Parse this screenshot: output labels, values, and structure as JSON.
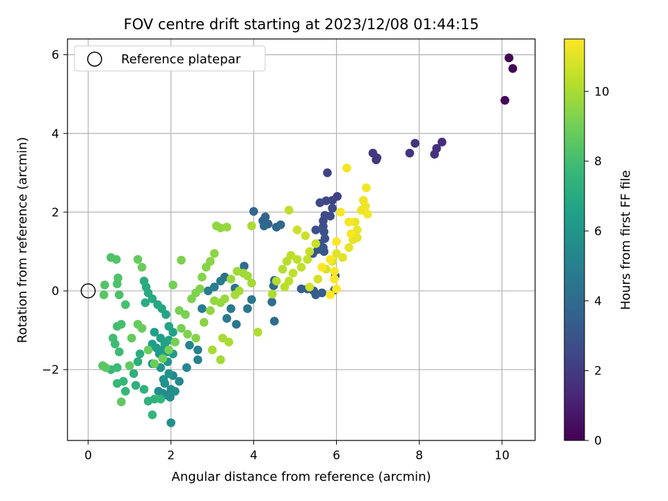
{
  "chart_data": {
    "type": "scatter",
    "title": "FOV centre drift starting at 2023/12/08 01:44:15",
    "xlabel": "Angular distance from reference (arcmin)",
    "ylabel": "Rotation from reference (arcmin)",
    "xlim": [
      -0.5,
      10.8
    ],
    "ylim": [
      -3.8,
      6.4
    ],
    "xticks": [
      0,
      2,
      4,
      6,
      8,
      10
    ],
    "yticks": [
      -2,
      0,
      2,
      4,
      6
    ],
    "xtick_labels": [
      "0",
      "2",
      "4",
      "6",
      "8",
      "10"
    ],
    "ytick_labels": [
      "−2",
      "0",
      "2",
      "4",
      "6"
    ],
    "grid": true,
    "legend": {
      "placement": "upper-left",
      "entries": [
        "Reference platepar"
      ]
    },
    "reference_point": {
      "name": "Reference platepar",
      "x": 0,
      "y": 0
    },
    "colorbar": {
      "label": "Hours from first FF file",
      "colormap": "viridis",
      "range": [
        0,
        11.5
      ],
      "ticks": [
        0,
        2,
        4,
        6,
        8,
        10
      ],
      "tick_labels": [
        "0",
        "2",
        "4",
        "6",
        "8",
        "10"
      ]
    },
    "series": [
      {
        "points": [
          [
            10.17,
            5.92,
            0.05
          ],
          [
            10.26,
            5.65,
            0.1
          ],
          [
            10.07,
            4.84,
            0.15
          ],
          [
            8.55,
            3.78,
            1.5
          ],
          [
            8.42,
            3.62,
            1.55
          ],
          [
            8.37,
            3.47,
            1.6
          ],
          [
            7.9,
            3.75,
            1.7
          ],
          [
            7.77,
            3.5,
            1.75
          ],
          [
            6.98,
            3.38,
            1.8
          ],
          [
            6.96,
            3.33,
            1.85
          ],
          [
            6.88,
            3.5,
            1.9
          ],
          [
            6.02,
            2.4,
            2.2
          ],
          [
            5.78,
            3.0,
            2.3
          ],
          [
            5.9,
            2.3,
            2.4
          ],
          [
            5.75,
            2.29,
            2.45
          ],
          [
            5.6,
            2.24,
            2.5
          ],
          [
            5.9,
            2.1,
            2.55
          ],
          [
            5.85,
            1.9,
            2.6
          ],
          [
            5.72,
            1.92,
            2.65
          ],
          [
            5.68,
            1.78,
            2.7
          ],
          [
            5.68,
            1.64,
            2.75
          ],
          [
            5.5,
            1.55,
            2.8
          ],
          [
            5.7,
            1.5,
            2.85
          ],
          [
            5.72,
            1.33,
            2.9
          ],
          [
            5.6,
            1.2,
            2.95
          ],
          [
            5.68,
            1.1,
            3.0
          ],
          [
            5.55,
            1.05,
            3.05
          ],
          [
            5.43,
            0.95,
            3.1
          ],
          [
            5.7,
            1.0,
            3.15
          ],
          [
            5.3,
            0.05,
            3.2
          ],
          [
            5.45,
            0.0,
            3.25
          ],
          [
            5.65,
            -0.05,
            3.3
          ],
          [
            5.5,
            -0.1,
            3.35
          ],
          [
            5.97,
            0.38,
            3.4
          ],
          [
            5.15,
            0.05,
            3.45
          ],
          [
            5.95,
            0.02,
            3.5
          ],
          [
            4.35,
            1.7,
            3.6
          ],
          [
            4.28,
            1.88,
            3.65
          ],
          [
            4.22,
            1.78,
            3.7
          ],
          [
            4.0,
            2.02,
            3.75
          ],
          [
            4.55,
            1.62,
            3.8
          ],
          [
            4.65,
            1.68,
            3.85
          ],
          [
            4.25,
            1.65,
            3.9
          ],
          [
            4.48,
            0.13,
            3.95
          ],
          [
            4.5,
            0.27,
            4.0
          ],
          [
            4.44,
            -0.28,
            4.05
          ],
          [
            4.5,
            -0.77,
            4.1
          ],
          [
            3.77,
            0.63,
            4.2
          ],
          [
            3.3,
            0.35,
            4.3
          ],
          [
            3.55,
            0.07,
            4.4
          ],
          [
            3.95,
            -0.22,
            4.5
          ],
          [
            3.85,
            -0.45,
            4.55
          ],
          [
            3.58,
            -0.85,
            4.6
          ],
          [
            3.45,
            -0.45,
            4.65
          ],
          [
            3.35,
            -0.7,
            4.7
          ],
          [
            3.2,
            0.25,
            4.75
          ],
          [
            3.05,
            0.1,
            4.8
          ],
          [
            2.9,
            0.0,
            4.85
          ],
          [
            2.75,
            -0.45,
            4.9
          ],
          [
            2.65,
            -1.5,
            5.0
          ],
          [
            2.65,
            -1.75,
            5.1
          ],
          [
            2.45,
            -1.38,
            5.2
          ],
          [
            2.38,
            -1.95,
            5.3
          ],
          [
            2.2,
            -2.3,
            5.4
          ],
          [
            2.05,
            -2.15,
            5.45
          ],
          [
            2.0,
            -2.5,
            5.5
          ],
          [
            1.9,
            -2.65,
            5.55
          ],
          [
            1.8,
            -2.6,
            5.6
          ],
          [
            1.7,
            -2.55,
            5.65
          ],
          [
            1.98,
            -2.7,
            5.7
          ],
          [
            2.1,
            -2.55,
            5.75
          ],
          [
            2.0,
            -3.35,
            5.8
          ],
          [
            1.85,
            -2.35,
            5.85
          ],
          [
            1.82,
            -2.25,
            5.9
          ],
          [
            1.75,
            -1.95,
            5.95
          ],
          [
            1.95,
            -2.1,
            6.0
          ],
          [
            1.55,
            -1.85,
            6.05
          ],
          [
            1.92,
            -1.8,
            6.1
          ],
          [
            2.05,
            -1.6,
            6.15
          ],
          [
            1.9,
            -1.55,
            6.2
          ],
          [
            1.8,
            -1.5,
            6.25
          ],
          [
            1.72,
            -1.6,
            6.3
          ],
          [
            1.65,
            -1.45,
            6.35
          ],
          [
            1.55,
            -1.35,
            6.4
          ],
          [
            1.6,
            -1.05,
            6.45
          ],
          [
            1.75,
            -1.2,
            6.5
          ],
          [
            1.85,
            -1.35,
            6.55
          ],
          [
            1.95,
            -1.25,
            6.6
          ],
          [
            2.05,
            -1.05,
            6.65
          ],
          [
            1.95,
            -0.9,
            6.7
          ],
          [
            1.88,
            -0.6,
            6.75
          ],
          [
            1.78,
            -0.45,
            6.8
          ],
          [
            1.68,
            -0.35,
            6.85
          ],
          [
            1.55,
            -0.2,
            6.9
          ],
          [
            1.45,
            -0.05,
            6.95
          ],
          [
            1.4,
            0.1,
            7.0
          ],
          [
            1.35,
            0.25,
            7.05
          ],
          [
            1.38,
            -0.3,
            7.1
          ],
          [
            1.25,
            -1.6,
            7.15
          ],
          [
            1.2,
            -1.8,
            7.2
          ],
          [
            1.1,
            -2.1,
            7.25
          ],
          [
            1.15,
            -2.4,
            7.3
          ],
          [
            1.35,
            -2.5,
            7.35
          ],
          [
            1.45,
            -2.8,
            7.4
          ],
          [
            1.6,
            -2.75,
            7.45
          ],
          [
            1.75,
            -2.75,
            7.5
          ],
          [
            1.55,
            -3.15,
            7.55
          ],
          [
            0.9,
            -2.55,
            7.6
          ],
          [
            0.85,
            -2.3,
            7.65
          ],
          [
            0.7,
            -2.35,
            7.7
          ],
          [
            0.55,
            -2.0,
            7.75
          ],
          [
            0.7,
            -1.95,
            7.8
          ],
          [
            0.75,
            -1.55,
            7.85
          ],
          [
            0.65,
            -1.35,
            7.9
          ],
          [
            0.6,
            -1.2,
            7.95
          ],
          [
            0.7,
            -0.9,
            8.0
          ],
          [
            0.8,
            -0.85,
            8.05
          ],
          [
            0.9,
            -0.35,
            8.1
          ],
          [
            0.75,
            -0.1,
            8.15
          ],
          [
            0.7,
            0.18,
            8.2
          ],
          [
            0.72,
            0.33,
            8.25
          ],
          [
            0.55,
            0.85,
            8.3
          ],
          [
            0.68,
            0.8,
            8.35
          ],
          [
            0.4,
            0.15,
            8.4
          ],
          [
            0.38,
            -0.1,
            8.45
          ],
          [
            0.35,
            -1.9,
            8.5
          ],
          [
            0.42,
            -1.95,
            8.55
          ],
          [
            0.8,
            -2.82,
            8.6
          ],
          [
            1.0,
            -1.9,
            8.65
          ],
          [
            1.05,
            -1.2,
            8.7
          ],
          [
            1.2,
            -0.85,
            8.75
          ],
          [
            1.3,
            -0.95,
            8.8
          ],
          [
            1.45,
            -1.5,
            8.85
          ],
          [
            1.6,
            -1.85,
            8.9
          ],
          [
            1.8,
            -1.72,
            8.95
          ],
          [
            1.95,
            -1.5,
            9.0
          ],
          [
            2.1,
            -1.3,
            9.05
          ],
          [
            2.25,
            -0.95,
            9.1
          ],
          [
            2.35,
            -0.6,
            9.15
          ],
          [
            2.5,
            -0.2,
            9.2
          ],
          [
            2.6,
            -0.05,
            9.25
          ],
          [
            2.7,
            0.05,
            9.3
          ],
          [
            2.75,
            0.35,
            9.35
          ],
          [
            2.85,
            0.6,
            9.4
          ],
          [
            2.95,
            0.75,
            9.45
          ],
          [
            3.05,
            0.95,
            9.5
          ],
          [
            3.1,
            1.65,
            9.55
          ],
          [
            3.2,
            1.6,
            9.6
          ],
          [
            3.35,
            1.62,
            9.65
          ],
          [
            1.2,
            0.8,
            8.7
          ],
          [
            1.3,
            0.6,
            8.8
          ],
          [
            2.25,
            0.78,
            9.2
          ],
          [
            2.05,
            0.15,
            9.05
          ],
          [
            2.2,
            -0.5,
            9.15
          ],
          [
            2.4,
            -1.1,
            9.25
          ],
          [
            2.6,
            -1.2,
            9.35
          ],
          [
            2.8,
            -0.8,
            9.45
          ],
          [
            2.95,
            -0.5,
            9.55
          ],
          [
            3.05,
            -0.25,
            9.6
          ],
          [
            3.2,
            -0.3,
            9.65
          ],
          [
            3.3,
            -0.2,
            9.7
          ],
          [
            3.45,
            0.3,
            9.75
          ],
          [
            3.6,
            0.5,
            9.8
          ],
          [
            3.75,
            0.45,
            9.82
          ],
          [
            3.85,
            0.38,
            9.85
          ],
          [
            3.95,
            0.2,
            9.9
          ],
          [
            3.65,
            0.0,
            9.92
          ],
          [
            3.55,
            -0.1,
            9.95
          ],
          [
            3.2,
            -1.75,
            9.9
          ],
          [
            3.0,
            -1.5,
            9.95
          ],
          [
            3.25,
            -1.2,
            10.0
          ],
          [
            3.4,
            -1.3,
            10.05
          ],
          [
            4.1,
            -1.05,
            10.1
          ],
          [
            3.95,
            1.65,
            10.0
          ],
          [
            4.45,
            -0.08,
            10.1
          ],
          [
            4.55,
            0.25,
            10.15
          ],
          [
            4.7,
            0.55,
            10.2
          ],
          [
            4.8,
            0.75,
            10.25
          ],
          [
            4.9,
            0.9,
            10.3
          ],
          [
            5.05,
            0.8,
            10.35
          ],
          [
            5.15,
            0.6,
            10.4
          ],
          [
            5.3,
            0.8,
            10.45
          ],
          [
            5.35,
            1.0,
            10.5
          ],
          [
            5.5,
            1.2,
            10.55
          ],
          [
            5.25,
            1.4,
            10.6
          ],
          [
            5.05,
            1.55,
            10.65
          ],
          [
            4.85,
            2.05,
            10.4
          ],
          [
            4.75,
            0.1,
            10.3
          ],
          [
            4.85,
            0.25,
            10.35
          ],
          [
            4.95,
            0.45,
            10.4
          ],
          [
            5.35,
            0.1,
            10.7
          ],
          [
            5.55,
            0.3,
            10.75
          ],
          [
            5.75,
            0.55,
            10.8
          ],
          [
            5.9,
            0.75,
            10.9
          ],
          [
            6.0,
            0.95,
            11.0
          ],
          [
            6.15,
            0.85,
            11.0
          ],
          [
            6.3,
            1.1,
            11.05
          ],
          [
            6.4,
            1.3,
            11.1
          ],
          [
            6.5,
            1.35,
            11.1
          ],
          [
            6.5,
            1.55,
            11.15
          ],
          [
            6.45,
            1.75,
            11.2
          ],
          [
            6.6,
            2.05,
            11.2
          ],
          [
            6.7,
            2.15,
            11.25
          ],
          [
            6.65,
            2.3,
            11.25
          ],
          [
            6.72,
            2.62,
            11.3
          ],
          [
            6.75,
            1.95,
            11.3
          ],
          [
            6.25,
            3.12,
            11.35
          ],
          [
            6.3,
            1.75,
            11.35
          ],
          [
            6.35,
            1.45,
            11.4
          ],
          [
            6.1,
            2.0,
            11.4
          ],
          [
            6.0,
            1.25,
            11.45
          ],
          [
            5.95,
            0.5,
            11.45
          ],
          [
            5.95,
            0.3,
            11.45
          ],
          [
            6.0,
            0.05,
            11.5
          ],
          [
            5.85,
            -0.1,
            11.5
          ],
          [
            5.65,
            0.6,
            11.5
          ],
          [
            5.85,
            0.8,
            11.5
          ]
        ]
      }
    ]
  }
}
